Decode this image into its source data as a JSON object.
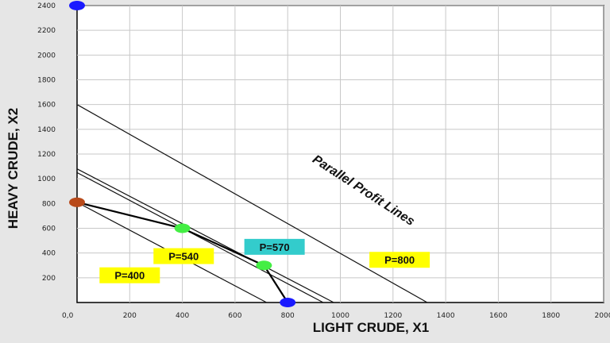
{
  "chart_data": {
    "type": "line",
    "xlabel": "LIGHT CRUDE, X1",
    "ylabel": "HEAVY CRUDE, X2",
    "xlim": [
      0,
      2000
    ],
    "ylim": [
      0,
      2400
    ],
    "grid": true,
    "origin_label": "0,0",
    "x_ticks": [
      200,
      400,
      600,
      800,
      1000,
      1200,
      1400,
      1600,
      1800,
      2000
    ],
    "y_ticks": [
      200,
      400,
      600,
      800,
      1000,
      1200,
      1400,
      1600,
      1800,
      2000,
      2200,
      2400
    ],
    "profit_lines": [
      {
        "label": "P=400",
        "x": [
          0,
          720
        ],
        "y": [
          810,
          0
        ]
      },
      {
        "label": "P=540",
        "x": [
          0,
          935
        ],
        "y": [
          1050,
          0
        ]
      },
      {
        "label": "P=570",
        "x": [
          0,
          975
        ],
        "y": [
          1080,
          0
        ]
      },
      {
        "label": "P=800",
        "x": [
          0,
          1330
        ],
        "y": [
          1600,
          0
        ]
      }
    ],
    "feasible_boundary": {
      "x": [
        0,
        400,
        710,
        800
      ],
      "y": [
        810,
        600,
        300,
        0
      ]
    },
    "points": [
      {
        "x": 0,
        "y": 2400,
        "color": "#1a1aff"
      },
      {
        "x": 800,
        "y": 0,
        "color": "#1a1aff"
      },
      {
        "x": 0,
        "y": 810,
        "color": "#b84a1a"
      },
      {
        "x": 400,
        "y": 600,
        "color": "#44ee44"
      },
      {
        "x": 710,
        "y": 300,
        "color": "#44ee44"
      }
    ],
    "labels": [
      {
        "text": "P=400",
        "x": 200,
        "y": 220,
        "bg": "#ffff00"
      },
      {
        "text": "P=540",
        "x": 405,
        "y": 375,
        "bg": "#ffff00"
      },
      {
        "text": "P=570",
        "x": 750,
        "y": 450,
        "bg": "#33cccc"
      },
      {
        "text": "P=800",
        "x": 1225,
        "y": 345,
        "bg": "#ffff00"
      }
    ],
    "annotation": {
      "text": "Parallel Profit Lines",
      "x": 1080,
      "y": 880
    }
  }
}
